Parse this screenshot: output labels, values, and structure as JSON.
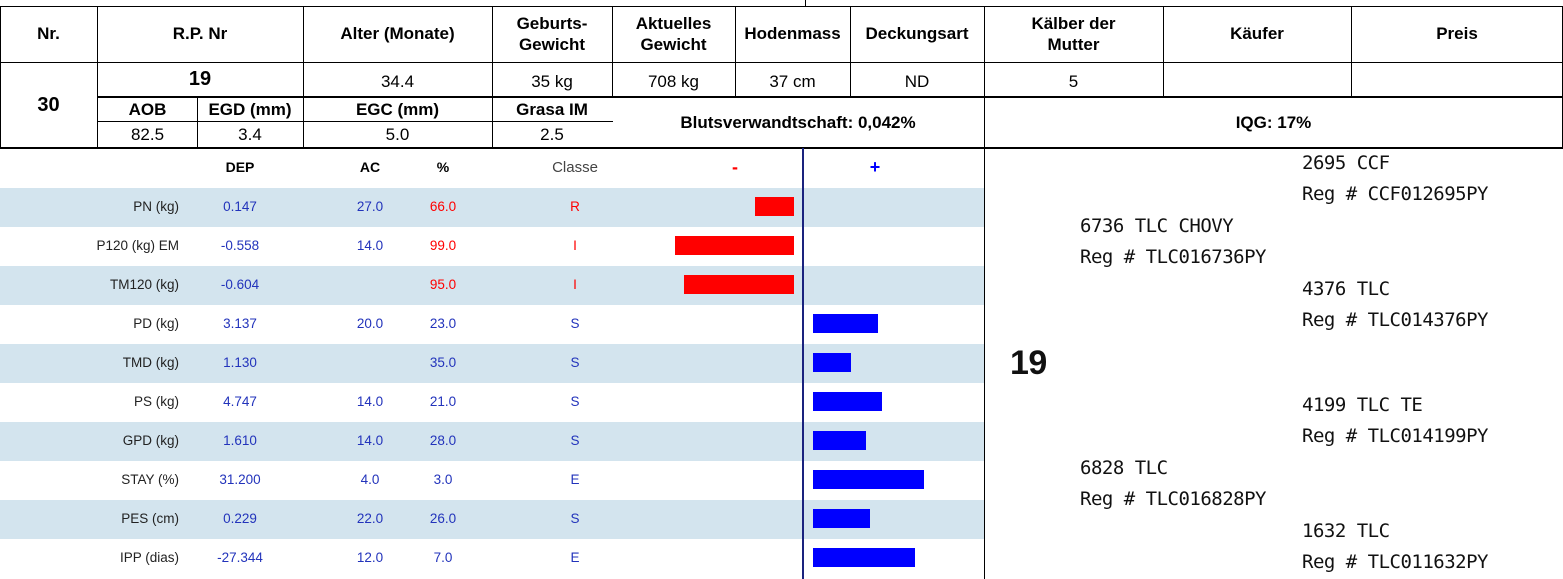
{
  "header": {
    "nr": "Nr.",
    "rp_nr": "R.P. Nr",
    "alter": "Alter (Monate)",
    "geburts_1": "Geburts-",
    "geburts_2": "Gewicht",
    "aktuelles_1": "Aktuelles",
    "aktuelles_2": "Gewicht",
    "hodenmass": "Hodenmass",
    "deckungsart": "Deckungsart",
    "kaelber_1": "Kälber der",
    "kaelber_2": "Mutter",
    "kaeufer": "Käufer",
    "preis": "Preis"
  },
  "animal": {
    "nr": "30",
    "rp_nr": "19",
    "alter": "34.4",
    "geburtsgewicht": "35 kg",
    "aktuelles_gewicht": "708 kg",
    "hodenmass": "37 cm",
    "deckungsart": "ND",
    "kaelber": "5",
    "kaeufer": "",
    "preis": ""
  },
  "carcass": {
    "aob_label": "AOB",
    "egd_label": "EGD (mm)",
    "egc_label": "EGC (mm)",
    "grasa_label": "Grasa IM",
    "aob": "82.5",
    "egd": "3.4",
    "egc": "5.0",
    "grasa": "2.5"
  },
  "blutsverwandtschaft": "Blutsverwandtschaft: 0,042%",
  "iqg": "IQG: 17%",
  "epd": {
    "headers": {
      "dep": "DEP",
      "ac": "AC",
      "pct": "%",
      "classe": "Classe",
      "minus": "-",
      "plus": "+"
    },
    "rows": [
      {
        "label": "PN (kg)",
        "dep": "0.147",
        "ac": "27.0",
        "pct": "66.0",
        "classe": "R",
        "negative": true,
        "bar": 0.26
      },
      {
        "label": "P120 (kg) EM",
        "dep": "-0.558",
        "ac": "14.0",
        "pct": "99.0",
        "classe": "I",
        "negative": true,
        "bar": 0.79
      },
      {
        "label": "TM120 (kg)",
        "dep": "-0.604",
        "ac": "",
        "pct": "95.0",
        "classe": "I",
        "negative": true,
        "bar": 0.73
      },
      {
        "label": "PD (kg)",
        "dep": "3.137",
        "ac": "20.0",
        "pct": "23.0",
        "classe": "S",
        "negative": false,
        "bar": 0.43
      },
      {
        "label": "TMD (kg)",
        "dep": "1.130",
        "ac": "",
        "pct": "35.0",
        "classe": "S",
        "negative": false,
        "bar": 0.25
      },
      {
        "label": "PS (kg)",
        "dep": "4.747",
        "ac": "14.0",
        "pct": "21.0",
        "classe": "S",
        "negative": false,
        "bar": 0.46
      },
      {
        "label": "GPD (kg)",
        "dep": "1.610",
        "ac": "14.0",
        "pct": "28.0",
        "classe": "S",
        "negative": false,
        "bar": 0.35
      },
      {
        "label": "STAY (%)",
        "dep": "31.200",
        "ac": "4.0",
        "pct": "3.0",
        "classe": "E",
        "negative": false,
        "bar": 0.74
      },
      {
        "label": "PES (cm)",
        "dep": "0.229",
        "ac": "22.0",
        "pct": "26.0",
        "classe": "S",
        "negative": false,
        "bar": 0.38
      },
      {
        "label": "IPP (dias)",
        "dep": "-27.344",
        "ac": "12.0",
        "pct": "7.0",
        "classe": "E",
        "negative": false,
        "bar": 0.68
      }
    ]
  },
  "colors": {
    "negative": "#ff0000",
    "positive": "#0000ff",
    "shade": "#d3e4ee",
    "blue_text": "#2233bb"
  },
  "pedigree": {
    "animal": "19",
    "sire": {
      "name": "6736 TLC CHOVY",
      "reg": "Reg # TLC016736PY"
    },
    "sire_sire": {
      "name": "2695 CCF",
      "reg": "Reg # CCF012695PY"
    },
    "sire_dam": {
      "name": "4376 TLC",
      "reg": "Reg # TLC014376PY"
    },
    "dam": {
      "name": "6828 TLC",
      "reg": "Reg # TLC016828PY"
    },
    "dam_sire": {
      "name": "4199 TLC TE",
      "reg": "Reg # TLC014199PY"
    },
    "dam_dam": {
      "name": "1632 TLC",
      "reg": "Reg # TLC011632PY"
    }
  }
}
